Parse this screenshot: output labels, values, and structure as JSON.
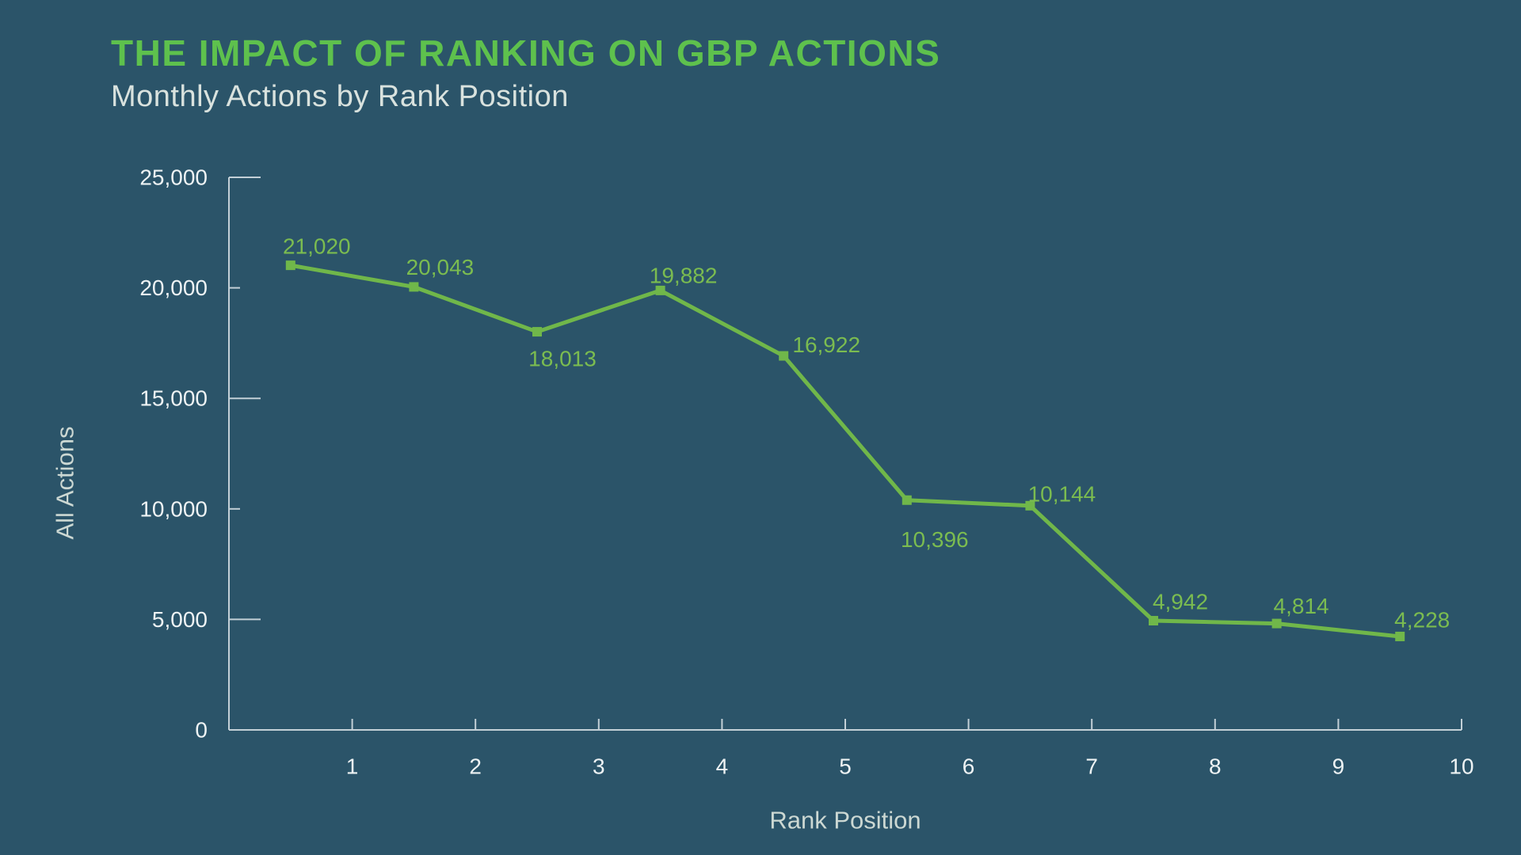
{
  "page": {
    "background": "#2b5469"
  },
  "header": {
    "title": "THE IMPACT OF RANKING ON GBP ACTIONS",
    "subtitle": "Monthly Actions by Rank Position",
    "title_color": "#5ec14d",
    "subtitle_color": "#d9e2de"
  },
  "chart_data": {
    "type": "line",
    "title": "THE IMPACT OF RANKING ON GBP ACTIONS",
    "subtitle": "Monthly Actions by Rank Position",
    "xlabel": "Rank Position",
    "ylabel": "All Actions",
    "x": [
      1,
      2,
      3,
      4,
      5,
      6,
      7,
      8,
      9,
      10
    ],
    "values": [
      21020,
      20043,
      18013,
      19882,
      16922,
      10396,
      10144,
      4942,
      4814,
      4228
    ],
    "data_labels": [
      "21,020",
      "20,043",
      "18,013",
      "19,882",
      "16,922",
      "10,396",
      "10,144",
      "4,942",
      "4,814",
      "4,228"
    ],
    "label_side": [
      "above",
      "above",
      "below",
      "above",
      "above",
      "below",
      "above",
      "above",
      "above",
      "above"
    ],
    "xtick_labels": [
      "1",
      "2",
      "3",
      "4",
      "5",
      "6",
      "7",
      "8",
      "9",
      "10"
    ],
    "ytick_values": [
      0,
      5000,
      10000,
      15000,
      20000,
      25000
    ],
    "ytick_labels": [
      "0",
      "5,000",
      "10,000",
      "15,000",
      "20,000",
      "25,000"
    ],
    "ylim": [
      0,
      25000
    ],
    "grid": false,
    "legend": "none",
    "marker": "square",
    "colors": {
      "line": "#70b74a",
      "data_label": "#7bbc50",
      "axis_line": "#c3d0d7",
      "tick_label": "#eef3f4",
      "axis_title": "#ccd8d3"
    }
  }
}
